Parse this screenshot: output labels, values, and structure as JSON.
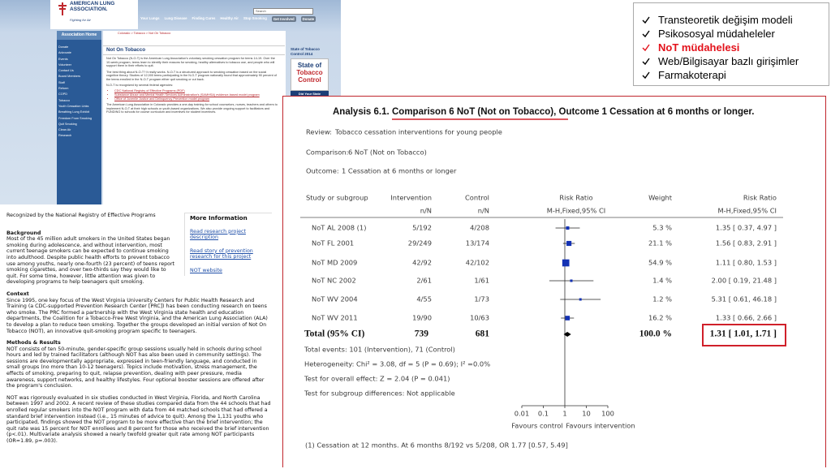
{
  "website": {
    "logo": {
      "name": "AMERICAN LUNG ASSOCIATION.",
      "tagline": "Fighting for Air"
    },
    "search": "Search",
    "nav": [
      "Your Lungs",
      "Lung Disease",
      "Finding Cures",
      "Healthy Air",
      "Stop Smoking",
      "Get Involved",
      "Donate"
    ],
    "sidebar_title": "Association Home",
    "sidebar": [
      "Donate",
      "Advocate",
      "Events",
      "Volunteer",
      "Contact Us",
      "Board Members",
      "Staff",
      "Reform",
      "COPD",
      "Tobacco",
      "Youth Cessation Links",
      "Breathing Lung Exhibit",
      "Freedom From Smoking",
      "Quit Smoking",
      "Clean Air",
      "Research"
    ],
    "breadcrumb": "Colorado > Tobacco > Not On Tobacco",
    "heading": "Not On Tobacco",
    "paragraphs": [
      "Not On Tobacco (N-O-T) is the American Lung Association's voluntary smoking cessation program for teens 14-19. Over the 10-week program, teens learn to identify their reasons for smoking, healthy alternatives to tobacco use, and people who will support them in their efforts to quit.",
      "The best thing about N-O-T? It really works. N-O-T is a structured approach to smoking cessation based on the social cognitive theory. Studies of 12,000 teens participating in the N-O-T program nationally found that approximately 90 percent of the teens enrolled in the N-O-T program either quit smoking or cut back.",
      "N-O-T is recognized by several federal agencies:"
    ],
    "links": [
      "CDC National Registry of Effective Programs (PDF)",
      "Substance Abuse and Mental Health Services Administration's (SAMHSA) evidence-based model program",
      "Office of Juvenile Justice and Delinquency Prevention model program"
    ],
    "closing": "The American Lung Association in Colorado provides a one-day training for school counselors, nurses, teachers and others to implement N-O-T at their high schools or youth-based organizations. We also provide ongoing support to facilitators and FUNDING to schools for course curriculum and incentives for student incentives.",
    "promo": {
      "title": "State of Tobacco Control 2014",
      "badge_top": "State of",
      "badge_mid": "Tobacco",
      "badge_bottom": "Control",
      "button": "Did Your State"
    }
  },
  "document": {
    "recognized": "Recognized by the National Registry of Effective Programs",
    "more_info": {
      "title": "More Information",
      "links": [
        "Read research project description",
        "Read story of prevention research for this project",
        "NOT website"
      ]
    },
    "sections": [
      {
        "heading": "Background",
        "paragraphs": [
          "Most of the 45 million adult smokers in the United States began smoking during adolescence, and without intervention, most current teenage smokers can be expected to continue smoking into adulthood. Despite public health efforts to prevent tobacco use among youths, nearly one-fourth (23 percent) of teens report smoking cigarettes, and over two-thirds say they would like to quit. For some time, however, little attention was given to developing programs to help teenagers quit smoking."
        ]
      },
      {
        "heading": "Context",
        "paragraphs": [
          "Since 1995, one key focus of the West Virginia University Centers for Public Health Research and Training (a CDC-supported Prevention Research Center [PRC]) has been conducting research on teens who smoke. The PRC formed a partnership with the West Virginia state health and education departments, the Coalition for a Tobacco-Free West Virginia, and the American Lung Association (ALA) to develop a plan to reduce teen smoking. Together the groups developed an initial version of Not On Tobacco (NOT), an innovative quit-smoking program specific to teenagers."
        ]
      },
      {
        "heading": "Methods & Results",
        "paragraphs": [
          "NOT consists of ten 50-minute, gender-specific group sessions usually held in schools during school hours and led by trained facilitators (although NOT has also been used in community settings). The sessions are developmentally appropriate, expressed in teen-friendly language, and conducted in small groups (no more than 10-12 teenagers). Topics include motivation, stress management, the effects of smoking, preparing to quit, relapse prevention, dealing with peer pressure, media awareness, support networks, and healthy lifestyles. Four optional booster sessions are offered after the program's conclusion.",
          "NOT was rigorously evaluated in six studies conducted in West Virginia, Florida, and North Carolina between 1997 and 2002. A recent review of these studies compared data from the 44 schools that had enrolled regular smokers into the NOT program with data from 44 matched schools that had offered a standard brief intervention instead (i.e., 15 minutes of advice to quit). Among the 1,131 youths who participated, findings showed the NOT program to be more effective than the brief intervention; the quit rate was 15 percent for NOT enrollees and 8 percent for those who received the brief intervention (p<.01). Multivariate analysis showed a nearly twofold greater quit rate among NOT participants (OR=1.89, p=.003)."
        ]
      }
    ]
  },
  "checklist": {
    "items": [
      {
        "text": "Transteoretik değişim modeli"
      },
      {
        "text": "Psikososyal müdaheleler"
      },
      {
        "text": "NoT müdahelesi",
        "highlight": true
      },
      {
        "text": "Web/Bilgisayar bazlı girişimler"
      },
      {
        "text": "Farmakoterapi"
      }
    ]
  },
  "analysis": {
    "label": "Analysis 6.1.",
    "title": "Comparison 6 NoT (Not on Tobacco), Outcome 1 Cessation at 6 months or longer.",
    "review": {
      "label": "Review:",
      "text": "Tobacco cessation interventions for young people"
    },
    "comparison": {
      "label": "Comparison:",
      "text": "6 NoT (Not on Tobacco)"
    },
    "outcome": {
      "label": "Outcome:",
      "text": "1 Cessation at 6 months or longer"
    },
    "headers": {
      "study": "Study or subgroup",
      "intervention": "Intervention",
      "control": "Control",
      "ratio": "Risk Ratio",
      "weight": "Weight",
      "ratio2": "Risk Ratio",
      "nN1": "n/N",
      "nN2": "n/N",
      "method": "M-H,Fixed,95% CI",
      "method2": "M-H,Fixed,95% CI"
    },
    "studies": [
      {
        "name": "NoT AL 2008 (1)",
        "intervention": "5/192",
        "control": "4/208",
        "weight": 5.3,
        "weight_label": "5.3 %",
        "rr": 1.35,
        "lo": 0.37,
        "hi": 4.97,
        "ci_label": "1.35 [ 0.37, 4.97 ]"
      },
      {
        "name": "NoT FL 2001",
        "intervention": "29/249",
        "control": "13/174",
        "weight": 21.1,
        "weight_label": "21.1 %",
        "rr": 1.56,
        "lo": 0.83,
        "hi": 2.91,
        "ci_label": "1.56 [ 0.83, 2.91 ]"
      },
      {
        "name": "NoT MD 2009",
        "intervention": "42/92",
        "control": "42/102",
        "weight": 54.9,
        "weight_label": "54.9 %",
        "rr": 1.11,
        "lo": 0.8,
        "hi": 1.53,
        "ci_label": "1.11 [ 0.80, 1.53 ]"
      },
      {
        "name": "NoT NC 2002",
        "intervention": "2/61",
        "control": "1/61",
        "weight": 1.4,
        "weight_label": "1.4 %",
        "rr": 2.0,
        "lo": 0.19,
        "hi": 21.48,
        "ci_label": "2.00 [ 0.19, 21.48 ]"
      },
      {
        "name": "NoT WV 2004",
        "intervention": "4/55",
        "control": "1/73",
        "weight": 1.2,
        "weight_label": "1.2 %",
        "rr": 5.31,
        "lo": 0.61,
        "hi": 46.18,
        "ci_label": "5.31 [ 0.61, 46.18 ]"
      },
      {
        "name": "NoT WV 2011",
        "intervention": "19/90",
        "control": "10/63",
        "weight": 16.2,
        "weight_label": "16.2 %",
        "rr": 1.33,
        "lo": 0.66,
        "hi": 2.66,
        "ci_label": "1.33 [ 0.66, 2.66 ]"
      }
    ],
    "total": {
      "name": "Total (95% CI)",
      "intervention": 739,
      "control": 681,
      "weight": 100,
      "weight_label": "100.0 %",
      "rr": 1.31,
      "lo": 1.01,
      "hi": 1.71,
      "ci_label": "1.31 [ 1.01, 1.71 ]"
    },
    "notes": [
      "Total events: 101 (Intervention), 71 (Control)",
      "Heterogeneity: Chi² = 3.08, df = 5 (P = 0.69); I² =0.0%",
      "Test for overall effect: Z = 2.04 (P = 0.041)",
      "Test for subgroup differences: Not applicable"
    ],
    "xticks": [
      0.01,
      0.1,
      1,
      10,
      100
    ],
    "xlim": [
      0.01,
      100
    ],
    "log_scale": true,
    "favours_left": "Favours control",
    "favours_right": "Favours intervention",
    "footnote": "(1) Cessation at 12 months. At 6 months 8/192 vs 5/208, OR 1.77 [0.57, 5.49]"
  }
}
